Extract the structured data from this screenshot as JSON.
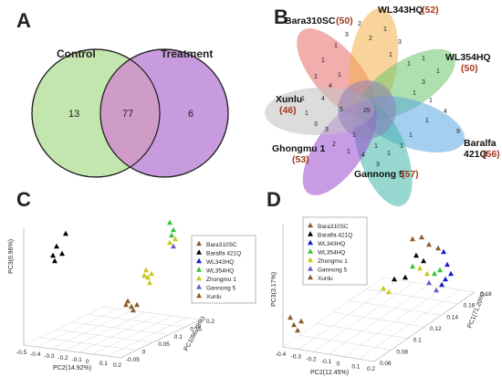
{
  "panels": {
    "a_letter": "A",
    "b_letter": "B",
    "c_letter": "C",
    "d_letter": "D"
  },
  "venn": {
    "left_label": "Control",
    "right_label": "Treatment",
    "left_only": "13",
    "overlap": "77",
    "right_only": "6",
    "colors": {
      "left": "#b8e0a0",
      "right": "#b070d0"
    }
  },
  "flower": {
    "center": "25",
    "petals": [
      {
        "name": "Bara310SC",
        "count": "(50)",
        "color": "#e86a6a"
      },
      {
        "name": "WL343HQ",
        "count": "(52)",
        "color": "#f2b04a"
      },
      {
        "name": "WL354HQ",
        "count": "(50)",
        "color": "#6cc46c"
      },
      {
        "name": "Baralfa",
        "name2": "421Q",
        "count": "(56)",
        "color": "#5aa8e0"
      },
      {
        "name": "Gannong 5",
        "count": "(57)",
        "color": "#3fb6a8"
      },
      {
        "name": "Ghongmu 1",
        "count": "(53)",
        "color": "#9a48d0"
      },
      {
        "name": "Xunlu",
        "count": "(46)",
        "color": "#c4c4c4"
      }
    ],
    "petal_numbers": [
      "2",
      "3",
      "1",
      "2",
      "1",
      "3",
      "1",
      "1",
      "1",
      "1",
      "3",
      "1",
      "1",
      "4",
      "1",
      "9",
      "1",
      "1",
      "1",
      "3",
      "1",
      "4",
      "1",
      "2",
      "3",
      "3",
      "1",
      "1",
      "4",
      "4",
      "1",
      "1",
      "1",
      "5",
      "1"
    ]
  },
  "legend": {
    "items": [
      {
        "label": "Bara310SC",
        "color": "#8b5a2b"
      },
      {
        "label": "Baralfa 421Q",
        "color": "#000000"
      },
      {
        "label": "WL343HQ",
        "color": "#1a1ad0"
      },
      {
        "label": "WL354HQ",
        "color": "#34c434"
      },
      {
        "label": "Zhongmu 1",
        "color": "#c8c81a"
      },
      {
        "label": "Gannong 5",
        "color": "#6a5acd"
      },
      {
        "label": "Xunlu",
        "color": "#8b5a2b"
      }
    ]
  },
  "chart_data": [
    {
      "type": "scatter",
      "panel": "C",
      "xlabel": "PC2(14.92%)",
      "ylabel": "PC3(6.96%)",
      "zlabel": "PC1(66.38%)",
      "x_ticks": [
        "-0.5",
        "-0.4",
        "-0.3",
        "-0.2",
        "-0.1",
        "0",
        "0.1",
        "0.2"
      ],
      "z_ticks": [
        "-0.05",
        "0",
        "0.05",
        "0.1",
        "0.15",
        "0.2"
      ]
    },
    {
      "type": "scatter",
      "panel": "D",
      "xlabel": "PC2(12.45%)",
      "ylabel": "PC3(3.17%)",
      "zlabel": "PC1(71.20%)",
      "x_ticks": [
        "-0.4",
        "-0.3",
        "-0.2",
        "-0.1",
        "0",
        "0.1",
        "0.2"
      ],
      "z_ticks": [
        "0.06",
        "0.08",
        "0.1",
        "0.12",
        "0.14",
        "0.16",
        "0.18"
      ]
    }
  ]
}
